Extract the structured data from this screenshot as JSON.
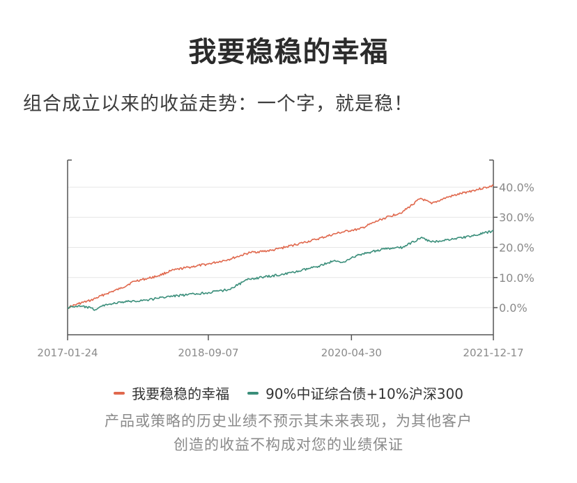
{
  "header": {
    "title": "我要稳稳的幸福",
    "subtitle": "组合成立以来的收益走势：一个字，就是稳！"
  },
  "chart_data": {
    "type": "line",
    "x_type": "date",
    "x_range": [
      "2017-01-24",
      "2021-12-17"
    ],
    "x_tick_labels": [
      "2017-01-24",
      "2018-09-07",
      "2020-04-30",
      "2021-12-17"
    ],
    "ylim": [
      -0.09,
      0.49
    ],
    "y_ticks": [
      0.0,
      0.1,
      0.2,
      0.3,
      0.4
    ],
    "y_tick_labels": [
      "0.0%",
      "10.0%",
      "20.0%",
      "30.0%",
      "40.0%"
    ],
    "y_axis_position": "right",
    "grid": "horizontal",
    "title": "",
    "xlabel": "",
    "ylabel": "",
    "legend_position": "bottom",
    "series": [
      {
        "name": "我要稳稳的幸福",
        "color": "#e0684d",
        "points": [
          [
            "2017-01-24",
            0.0
          ],
          [
            "2017-03-10",
            0.013
          ],
          [
            "2017-05-01",
            0.024
          ],
          [
            "2017-07-01",
            0.045
          ],
          [
            "2017-09-01",
            0.063
          ],
          [
            "2017-11-01",
            0.088
          ],
          [
            "2018-01-01",
            0.098
          ],
          [
            "2018-02-10",
            0.106
          ],
          [
            "2018-04-01",
            0.122
          ],
          [
            "2018-06-01",
            0.132
          ],
          [
            "2018-09-07",
            0.145
          ],
          [
            "2018-12-01",
            0.16
          ],
          [
            "2019-03-01",
            0.183
          ],
          [
            "2019-06-01",
            0.19
          ],
          [
            "2019-09-01",
            0.208
          ],
          [
            "2019-12-01",
            0.226
          ],
          [
            "2020-03-01",
            0.247
          ],
          [
            "2020-04-30",
            0.257
          ],
          [
            "2020-06-01",
            0.26
          ],
          [
            "2020-09-01",
            0.293
          ],
          [
            "2020-12-01",
            0.318
          ],
          [
            "2021-02-15",
            0.363
          ],
          [
            "2021-04-01",
            0.345
          ],
          [
            "2021-06-01",
            0.365
          ],
          [
            "2021-09-01",
            0.385
          ],
          [
            "2021-12-17",
            0.405
          ]
        ]
      },
      {
        "name": "90%中证综合债+10%沪深300",
        "color": "#3a8e7a",
        "points": [
          [
            "2017-01-24",
            0.0
          ],
          [
            "2017-03-01",
            0.005
          ],
          [
            "2017-04-15",
            0.002
          ],
          [
            "2017-05-20",
            -0.007
          ],
          [
            "2017-07-01",
            0.01
          ],
          [
            "2017-10-01",
            0.02
          ],
          [
            "2018-01-01",
            0.026
          ],
          [
            "2018-03-01",
            0.035
          ],
          [
            "2018-06-01",
            0.042
          ],
          [
            "2018-09-07",
            0.05
          ],
          [
            "2018-12-01",
            0.06
          ],
          [
            "2019-02-25",
            0.095
          ],
          [
            "2019-06-01",
            0.105
          ],
          [
            "2019-09-01",
            0.117
          ],
          [
            "2019-12-01",
            0.135
          ],
          [
            "2020-02-15",
            0.155
          ],
          [
            "2020-03-20",
            0.15
          ],
          [
            "2020-04-30",
            0.165
          ],
          [
            "2020-06-01",
            0.175
          ],
          [
            "2020-09-01",
            0.193
          ],
          [
            "2020-12-01",
            0.2
          ],
          [
            "2021-02-15",
            0.232
          ],
          [
            "2021-04-01",
            0.218
          ],
          [
            "2021-07-01",
            0.228
          ],
          [
            "2021-10-01",
            0.24
          ],
          [
            "2021-12-17",
            0.255
          ]
        ]
      }
    ]
  },
  "footer": {
    "disclaimer_line1": "产品或策略的历史业绩不预示其未来表现，为其他客户",
    "disclaimer_line2": "创造的收益不构成对您的业绩保证"
  }
}
